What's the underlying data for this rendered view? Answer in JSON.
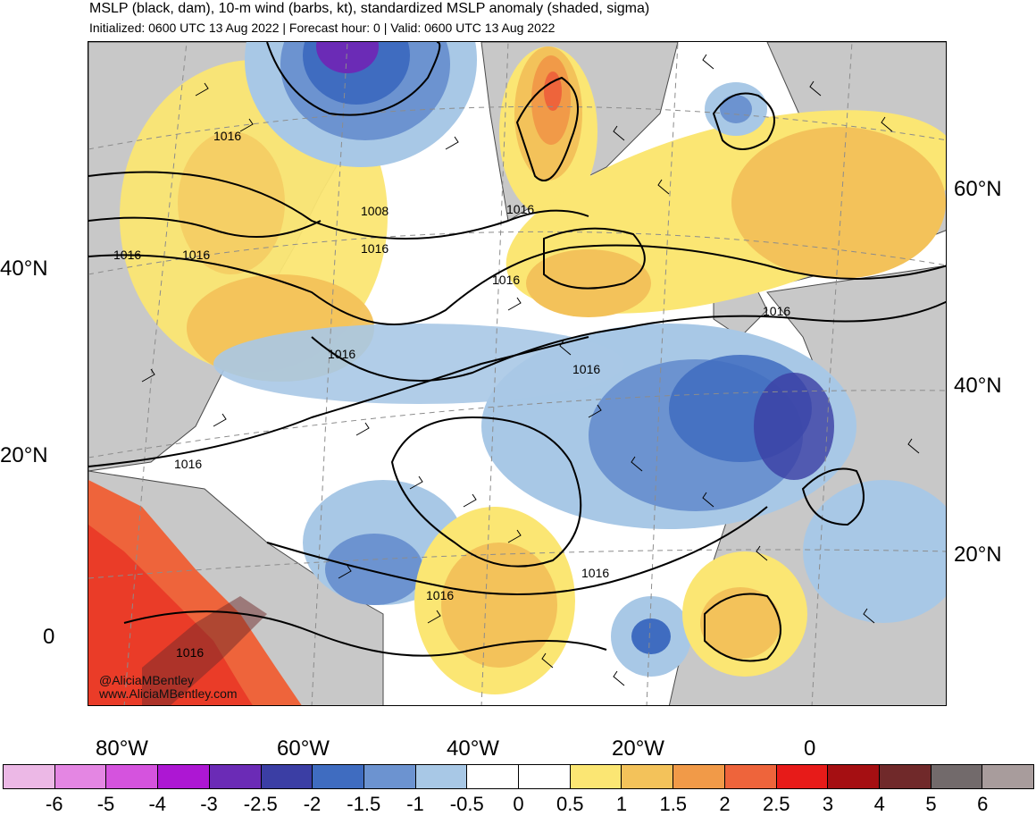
{
  "title": "MSLP (black, dam), 10-m wind (barbs, kt), standardized MSLP anomaly (shaded, sigma)",
  "subtitle": "Initialized: 0600 UTC 13 Aug 2022 | Forecast hour: 0 | Valid: 0600 UTC 13 Aug 2022",
  "axes": {
    "left_lat": [
      "40°N",
      "20°N",
      "0"
    ],
    "right_lat": [
      "60°N",
      "40°N",
      "20°N"
    ],
    "bottom_lon": [
      "80°W",
      "60°W",
      "40°W",
      "20°W",
      "0"
    ]
  },
  "contour_labels": [
    "1016",
    "1016",
    "1016",
    "1008",
    "1016",
    "1016",
    "1016",
    "1016",
    "1016",
    "1016",
    "1016",
    "1016",
    "1016",
    "1016"
  ],
  "credit": {
    "handle": "@AliciaMBentley",
    "website": "www.AliciaMBentley.com"
  },
  "colorbar": {
    "colors": [
      "#ecb8e6",
      "#e486e3",
      "#d553de",
      "#ad17d3",
      "#6b2bb6",
      "#3b3ea4",
      "#3f6cc0",
      "#6c93d0",
      "#a8c8e6",
      "#ffffff",
      "#ffffff",
      "#fbe673",
      "#f3c25a",
      "#f19a48",
      "#ee643b",
      "#e71b19",
      "#a50f12",
      "#70292a",
      "#726a6b",
      "#a89c9c"
    ],
    "ticks": [
      "-6",
      "-5",
      "-4",
      "-3",
      "-2.5",
      "-2",
      "-1.5",
      "-1",
      "-0.5",
      "0",
      "0.5",
      "1",
      "1.5",
      "2",
      "2.5",
      "3",
      "4",
      "5",
      "6"
    ]
  },
  "map_colors": {
    "land": "#c8c8c8",
    "ocean": "#ffffff",
    "coast": "#4a4a4a",
    "isobar": "#000000",
    "grid": "#8c8c8c"
  }
}
